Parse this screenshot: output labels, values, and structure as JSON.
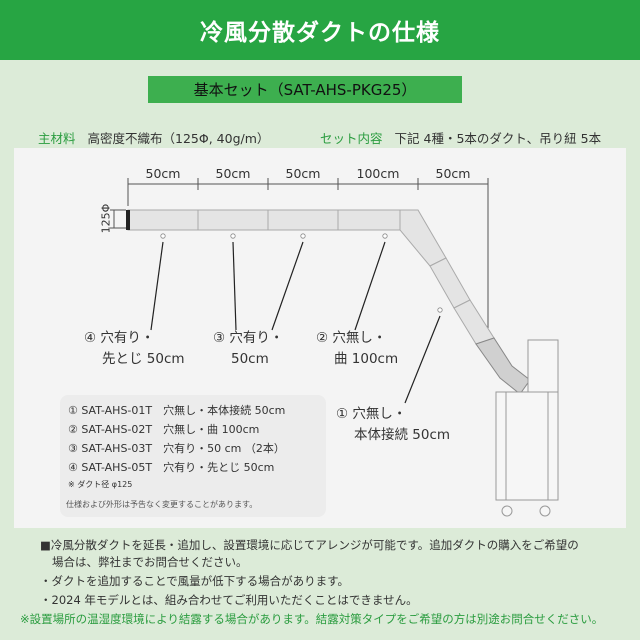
{
  "header": {
    "title": "冷風分散ダクトの仕様"
  },
  "set": {
    "label": "基本セット（SAT-AHS-PKG25）"
  },
  "info": {
    "material_label": "主材料",
    "material_value": "高密度不織布（125Φ, 40g/m）",
    "content_label": "セット内容",
    "content_value": "下記 4種・5本のダクト、吊り紐 5本"
  },
  "dims": {
    "d1": "50cm",
    "d2": "50cm",
    "d3": "50cm",
    "d4": "100cm",
    "d5": "50cm",
    "diameter": "125Φ"
  },
  "callouts": {
    "c4_line1": "④ 穴有り・",
    "c4_line2": "先とじ 50cm",
    "c3_line1": "③ 穴有り・",
    "c3_line2": "50cm",
    "c2_line1": "② 穴無し・",
    "c2_line2": "曲 100cm",
    "c1_line1": "① 穴無し・",
    "c1_line2": "本体接続 50cm"
  },
  "spec": {
    "rows": [
      "① SAT-AHS-01T　穴無し・本体接続 50cm",
      "② SAT-AHS-02T　穴無し・曲 100cm",
      "③ SAT-AHS-03T　穴有り・50 cm （2本）",
      "④ SAT-AHS-05T　穴有り・先とじ 50cm"
    ],
    "note": "※ ダクト径 φ125"
  },
  "change_note": "仕様および外形は予告なく変更することがあります。",
  "footer": {
    "line1": "■冷風分散ダクトを延長・追加し、設置環境に応じてアレンジが可能です。追加ダクトの購入をご希望の",
    "line2": "場合は、弊社までお問合せください。",
    "line3": "・ダクトを追加することで風量が低下する場合があります。",
    "line4": "・2024 年モデルとは、組み合わせてご利用いただくことはできません。",
    "line5": "※設置場所の温湿度環境により結露する場合があります。結露対策タイプをご希望の方は別途お問合せください。"
  },
  "colors": {
    "header_bg": "#27a543",
    "set_bg": "#3daf4f",
    "accent_text": "#2a9c3f",
    "page_bg": "#dcebd8",
    "panel_bg": "#f4f4f4"
  }
}
